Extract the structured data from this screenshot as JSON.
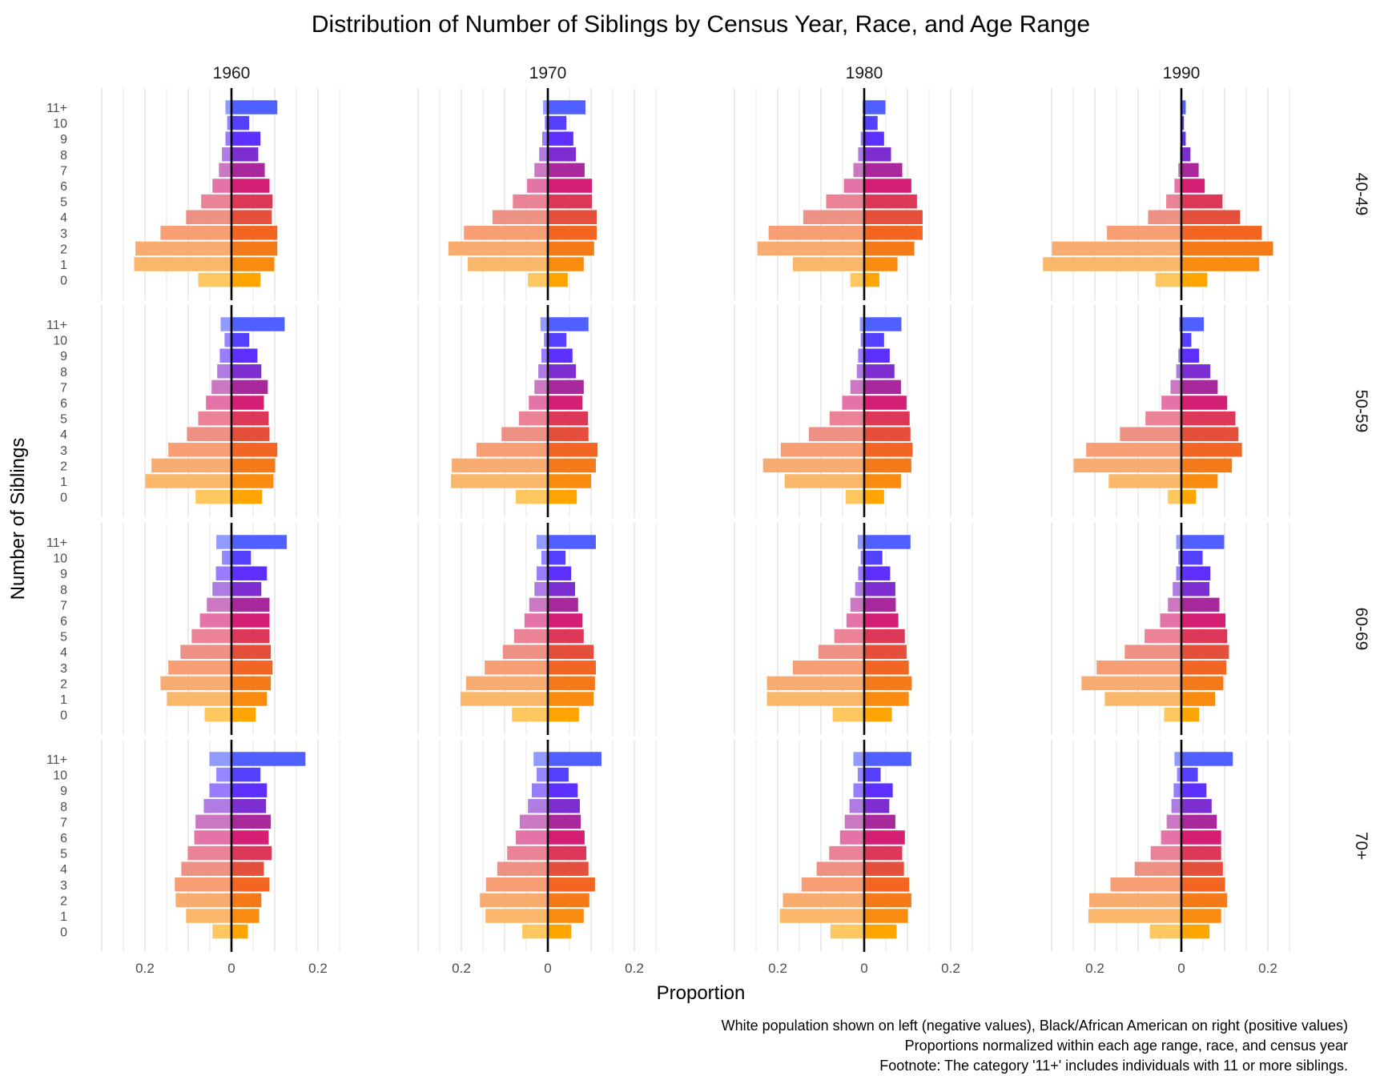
{
  "chart_data": {
    "type": "bar",
    "subtype": "faceted-population-pyramid",
    "title": "Distribution of Number of Siblings by Census Year, Race, and Age Range",
    "xlabel": "Proportion",
    "ylabel": "Number of Siblings",
    "x_tick_labels": [
      "0.2",
      "0",
      "0.2"
    ],
    "x_tick_values": [
      -0.2,
      0,
      0.2
    ],
    "xlim": [
      -0.3,
      0.25
    ],
    "grid": true,
    "caption": [
      "White population shown on left (negative values), Black/African American on right (positive values)",
      "Proportions normalized within each age range, race, and census year",
      "Footnote: The category '11+' includes individuals with 11 or more siblings."
    ],
    "categories": [
      "0",
      "1",
      "2",
      "3",
      "4",
      "5",
      "6",
      "7",
      "8",
      "9",
      "10",
      "11+"
    ],
    "category_colors": [
      "#FFA500",
      "#F98C0F",
      "#F47A1A",
      "#F26522",
      "#E5503D",
      "#DE3858",
      "#D41F75",
      "#A9289C",
      "#7D2ED0",
      "#5D30FF",
      "#5540FF",
      "#5060FF"
    ],
    "columns": [
      "1960",
      "1970",
      "1980",
      "1990"
    ],
    "rows": [
      "40-49",
      "50-59",
      "60-69",
      "70+"
    ],
    "series_legend": [
      {
        "name": "White",
        "side": "left",
        "sign": "negative"
      },
      {
        "name": "Black/African American",
        "side": "right",
        "sign": "positive"
      }
    ],
    "panels": [
      {
        "year": "1960",
        "age": "40-49",
        "white": [
          0.077,
          0.225,
          0.222,
          0.164,
          0.105,
          0.07,
          0.044,
          0.029,
          0.022,
          0.014,
          0.01,
          0.014
        ],
        "black": [
          0.067,
          0.099,
          0.106,
          0.106,
          0.093,
          0.095,
          0.088,
          0.077,
          0.062,
          0.067,
          0.041,
          0.106
        ]
      },
      {
        "year": "1970",
        "age": "40-49",
        "white": [
          0.046,
          0.185,
          0.23,
          0.194,
          0.128,
          0.081,
          0.048,
          0.031,
          0.02,
          0.013,
          0.007,
          0.011
        ],
        "black": [
          0.046,
          0.083,
          0.107,
          0.113,
          0.113,
          0.102,
          0.102,
          0.085,
          0.065,
          0.059,
          0.043,
          0.087
        ]
      },
      {
        "year": "1980",
        "age": "40-49",
        "white": [
          0.032,
          0.165,
          0.247,
          0.221,
          0.141,
          0.088,
          0.047,
          0.025,
          0.014,
          0.008,
          0.004,
          0.004
        ],
        "black": [
          0.035,
          0.077,
          0.116,
          0.135,
          0.135,
          0.122,
          0.109,
          0.088,
          0.062,
          0.046,
          0.031,
          0.049
        ]
      },
      {
        "year": "1990",
        "age": "40-49",
        "white": [
          0.06,
          0.32,
          0.299,
          0.172,
          0.077,
          0.035,
          0.016,
          0.007,
          0.003,
          0.0,
          0.0,
          0.0
        ],
        "black": [
          0.06,
          0.18,
          0.212,
          0.186,
          0.136,
          0.095,
          0.054,
          0.04,
          0.021,
          0.01,
          0.006,
          0.01
        ]
      },
      {
        "year": "1960",
        "age": "50-59",
        "white": [
          0.083,
          0.199,
          0.185,
          0.146,
          0.103,
          0.077,
          0.059,
          0.046,
          0.033,
          0.027,
          0.016,
          0.025
        ],
        "black": [
          0.071,
          0.097,
          0.101,
          0.106,
          0.088,
          0.086,
          0.075,
          0.084,
          0.069,
          0.06,
          0.041,
          0.123
        ]
      },
      {
        "year": "1970",
        "age": "50-59",
        "white": [
          0.074,
          0.224,
          0.222,
          0.165,
          0.107,
          0.067,
          0.044,
          0.031,
          0.022,
          0.015,
          0.009,
          0.017
        ],
        "black": [
          0.067,
          0.1,
          0.111,
          0.115,
          0.094,
          0.093,
          0.08,
          0.083,
          0.065,
          0.057,
          0.043,
          0.094
        ]
      },
      {
        "year": "1980",
        "age": "50-59",
        "white": [
          0.043,
          0.184,
          0.234,
          0.193,
          0.128,
          0.08,
          0.051,
          0.032,
          0.017,
          0.014,
          0.008,
          0.01
        ],
        "black": [
          0.046,
          0.085,
          0.109,
          0.112,
          0.107,
          0.105,
          0.098,
          0.085,
          0.07,
          0.059,
          0.046,
          0.086
        ]
      },
      {
        "year": "1990",
        "age": "50-59",
        "white": [
          0.031,
          0.168,
          0.249,
          0.22,
          0.142,
          0.083,
          0.046,
          0.025,
          0.012,
          0.007,
          0.002,
          0.005
        ],
        "black": [
          0.034,
          0.084,
          0.117,
          0.14,
          0.132,
          0.125,
          0.106,
          0.084,
          0.067,
          0.041,
          0.023,
          0.052
        ]
      },
      {
        "year": "1960",
        "age": "60-69",
        "white": [
          0.062,
          0.149,
          0.164,
          0.146,
          0.118,
          0.092,
          0.073,
          0.057,
          0.044,
          0.036,
          0.022,
          0.035
        ],
        "black": [
          0.056,
          0.082,
          0.091,
          0.095,
          0.091,
          0.088,
          0.088,
          0.088,
          0.069,
          0.082,
          0.045,
          0.128
        ]
      },
      {
        "year": "1970",
        "age": "60-69",
        "white": [
          0.083,
          0.202,
          0.189,
          0.146,
          0.104,
          0.078,
          0.054,
          0.043,
          0.031,
          0.026,
          0.015,
          0.026
        ],
        "black": [
          0.072,
          0.106,
          0.109,
          0.111,
          0.106,
          0.083,
          0.08,
          0.07,
          0.063,
          0.054,
          0.041,
          0.111
        ]
      },
      {
        "year": "1980",
        "age": "60-69",
        "white": [
          0.073,
          0.225,
          0.225,
          0.165,
          0.106,
          0.069,
          0.041,
          0.032,
          0.021,
          0.014,
          0.008,
          0.015
        ],
        "black": [
          0.064,
          0.103,
          0.11,
          0.103,
          0.098,
          0.094,
          0.079,
          0.073,
          0.072,
          0.06,
          0.042,
          0.107
        ]
      },
      {
        "year": "1990",
        "age": "60-69",
        "white": [
          0.04,
          0.177,
          0.231,
          0.196,
          0.131,
          0.085,
          0.049,
          0.031,
          0.02,
          0.012,
          0.007,
          0.012
        ],
        "black": [
          0.041,
          0.078,
          0.097,
          0.104,
          0.11,
          0.106,
          0.102,
          0.088,
          0.065,
          0.067,
          0.049,
          0.099
        ]
      },
      {
        "year": "1960",
        "age": "70+",
        "white": [
          0.044,
          0.105,
          0.129,
          0.131,
          0.116,
          0.101,
          0.086,
          0.083,
          0.064,
          0.051,
          0.035,
          0.051
        ],
        "black": [
          0.038,
          0.064,
          0.069,
          0.088,
          0.075,
          0.093,
          0.086,
          0.091,
          0.08,
          0.082,
          0.067,
          0.171
        ]
      },
      {
        "year": "1970",
        "age": "70+",
        "white": [
          0.059,
          0.144,
          0.157,
          0.143,
          0.117,
          0.094,
          0.074,
          0.065,
          0.046,
          0.037,
          0.026,
          0.033
        ],
        "black": [
          0.054,
          0.083,
          0.096,
          0.109,
          0.094,
          0.089,
          0.085,
          0.076,
          0.074,
          0.069,
          0.048,
          0.124
        ]
      },
      {
        "year": "1980",
        "age": "70+",
        "white": [
          0.078,
          0.195,
          0.188,
          0.145,
          0.11,
          0.081,
          0.056,
          0.045,
          0.034,
          0.025,
          0.015,
          0.025
        ],
        "black": [
          0.075,
          0.101,
          0.109,
          0.104,
          0.092,
          0.088,
          0.094,
          0.072,
          0.058,
          0.066,
          0.038,
          0.109
        ]
      },
      {
        "year": "1990",
        "age": "70+",
        "white": [
          0.073,
          0.215,
          0.213,
          0.164,
          0.108,
          0.071,
          0.047,
          0.034,
          0.023,
          0.018,
          0.01,
          0.016
        ],
        "black": [
          0.065,
          0.092,
          0.106,
          0.101,
          0.096,
          0.092,
          0.092,
          0.082,
          0.07,
          0.058,
          0.038,
          0.119
        ]
      }
    ]
  }
}
